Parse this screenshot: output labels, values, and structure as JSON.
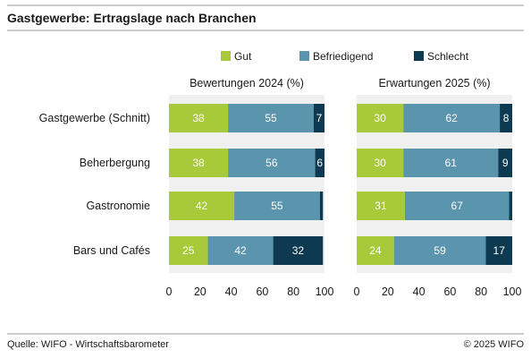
{
  "title": "Gastgewerbe: Ertragslage nach Branchen",
  "source": "Quelle: WIFO - Wirtschaftsbarometer",
  "copyright": "© 2025 WIFO",
  "colors": {
    "Gut": "#a8c93a",
    "Befriedigend": "#5b95ad",
    "Schlecht": "#0d3a50",
    "background": "#ffffff",
    "panel": "#f0f0f0",
    "rule": "#9a9a9a"
  },
  "chart_data": {
    "type": "bar",
    "orientation": "horizontal",
    "stacked": true,
    "legend_position": "top",
    "categories": [
      "Gastgewerbe (Schnitt)",
      "Beherbergung",
      "Gastronomie",
      "Bars und Cafés"
    ],
    "series_names": [
      "Gut",
      "Befriedigend",
      "Schlecht"
    ],
    "xlim": [
      0,
      100
    ],
    "xticks": [
      0,
      20,
      40,
      60,
      80,
      100
    ],
    "panels": [
      {
        "title": "Bewertungen 2024 (%)",
        "series": [
          {
            "name": "Gut",
            "values": [
              38,
              38,
              42,
              25
            ],
            "labels": [
              "38",
              "38",
              "42",
              "25"
            ]
          },
          {
            "name": "Befriedigend",
            "values": [
              55,
              56,
              55,
              42
            ],
            "labels": [
              "55",
              "56",
              "55",
              "42"
            ]
          },
          {
            "name": "Schlecht",
            "values": [
              7,
              6,
              2,
              32
            ],
            "labels": [
              "7",
              "6",
              "",
              "32"
            ]
          }
        ]
      },
      {
        "title": "Erwartungen 2025 (%)",
        "series": [
          {
            "name": "Gut",
            "values": [
              30,
              30,
              31,
              24
            ],
            "labels": [
              "30",
              "30",
              "31",
              "24"
            ]
          },
          {
            "name": "Befriedigend",
            "values": [
              62,
              61,
              67,
              59
            ],
            "labels": [
              "62",
              "61",
              "67",
              "59"
            ]
          },
          {
            "name": "Schlecht",
            "values": [
              8,
              9,
              2,
              17
            ],
            "labels": [
              "8",
              "9",
              "",
              "17"
            ]
          }
        ]
      }
    ]
  }
}
